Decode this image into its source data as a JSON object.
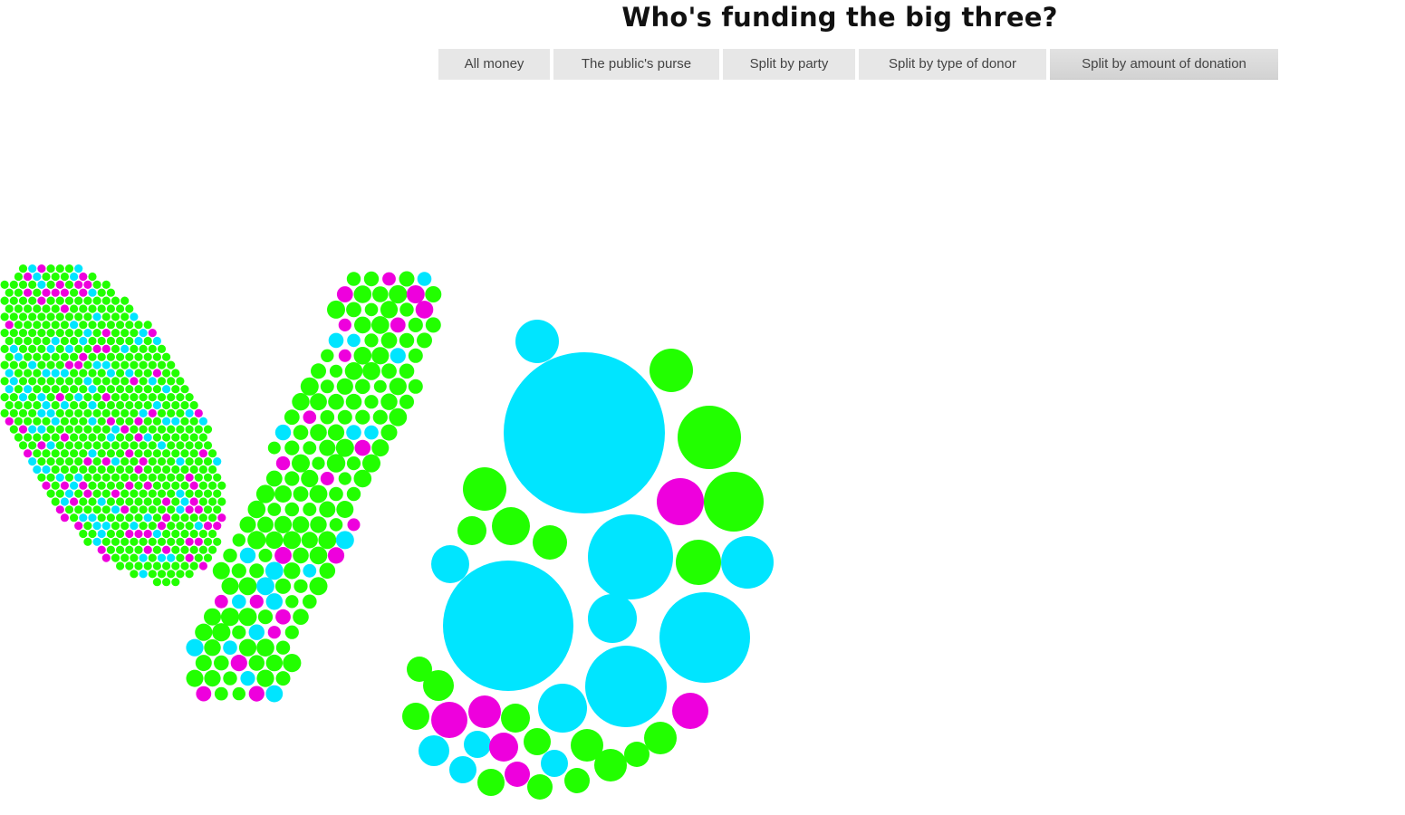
{
  "page": {
    "title": "Who's funding the big three?"
  },
  "tabs": [
    {
      "label": "All money",
      "active": false
    },
    {
      "label": "The public's purse",
      "active": false
    },
    {
      "label": "Split by party",
      "active": false
    },
    {
      "label": "Split by type of donor",
      "active": false
    },
    {
      "label": "Split by amount of donation",
      "active": true
    }
  ],
  "colors": {
    "green": "#22ff00",
    "cyan": "#00e5ff",
    "magenta": "#ee00dd"
  },
  "chart_data": {
    "type": "bubble",
    "groups": 3
  }
}
